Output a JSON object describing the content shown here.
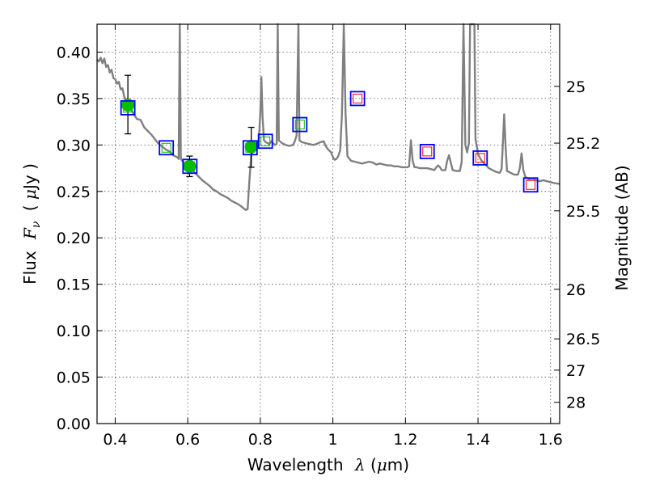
{
  "chart_data": {
    "type": "scatter",
    "xlabel": "Wavelength",
    "xlabel_symbol": "λ",
    "xlabel_unit_open": "(",
    "xlabel_unit_mu": "μ",
    "xlabel_unit_rest": "m)",
    "ylabel": "Flux",
    "ylabel_symbol": "F",
    "ylabel_symbol_sub": "ν",
    "ylabel_unit_open": "(",
    "ylabel_unit_mu": "μ",
    "ylabel_unit_rest": "Jy )",
    "y2label": "Magnitude (AB)",
    "xlim": [
      0.35,
      1.625
    ],
    "ylim": [
      0.0,
      0.43
    ],
    "grid": true,
    "x_ticks": [
      {
        "value": 0.4,
        "label": "0.4"
      },
      {
        "value": 0.6,
        "label": "0.6"
      },
      {
        "value": 0.8,
        "label": "0.8"
      },
      {
        "value": 1.0,
        "label": "1"
      },
      {
        "value": 1.2,
        "label": "1.2"
      },
      {
        "value": 1.4,
        "label": "1.4"
      },
      {
        "value": 1.6,
        "label": "1.6"
      }
    ],
    "y_ticks": [
      {
        "value": 0.0,
        "label": "0.00"
      },
      {
        "value": 0.05,
        "label": "0.05"
      },
      {
        "value": 0.1,
        "label": "0.10"
      },
      {
        "value": 0.15,
        "label": "0.15"
      },
      {
        "value": 0.2,
        "label": "0.20"
      },
      {
        "value": 0.25,
        "label": "0.25"
      },
      {
        "value": 0.3,
        "label": "0.30"
      },
      {
        "value": 0.35,
        "label": "0.35"
      },
      {
        "value": 0.4,
        "label": "0.40"
      }
    ],
    "y2_ticks": [
      {
        "mag": 25,
        "label": "25"
      },
      {
        "mag": 25.2,
        "label": "25.2"
      },
      {
        "mag": 25.5,
        "label": "25.5"
      },
      {
        "mag": 26,
        "label": "26"
      },
      {
        "mag": 26.5,
        "label": "26.5"
      },
      {
        "mag": 27,
        "label": "27"
      },
      {
        "mag": 28,
        "label": "28"
      }
    ],
    "colors": {
      "spectrum": "#808080",
      "observed": "#00bf00",
      "model_box": "#0000ff",
      "optical_model_inner": "#00bf00",
      "nir_model_inner": "#ff0000",
      "errorbar": "#000000",
      "grid": "#000000"
    },
    "spectrum": [
      [
        0.35,
        0.392
      ],
      [
        0.355,
        0.39
      ],
      [
        0.36,
        0.394
      ],
      [
        0.365,
        0.388
      ],
      [
        0.37,
        0.393
      ],
      [
        0.375,
        0.384
      ],
      [
        0.38,
        0.386
      ],
      [
        0.385,
        0.378
      ],
      [
        0.39,
        0.381
      ],
      [
        0.395,
        0.372
      ],
      [
        0.4,
        0.371
      ],
      [
        0.405,
        0.366
      ],
      [
        0.41,
        0.368
      ],
      [
        0.415,
        0.36
      ],
      [
        0.42,
        0.361
      ],
      [
        0.425,
        0.352
      ],
      [
        0.43,
        0.347
      ],
      [
        0.435,
        0.341
      ],
      [
        0.44,
        0.34
      ],
      [
        0.45,
        0.334
      ],
      [
        0.46,
        0.328
      ],
      [
        0.47,
        0.327
      ],
      [
        0.48,
        0.319
      ],
      [
        0.49,
        0.315
      ],
      [
        0.5,
        0.311
      ],
      [
        0.51,
        0.306
      ],
      [
        0.52,
        0.301
      ],
      [
        0.53,
        0.298
      ],
      [
        0.54,
        0.295
      ],
      [
        0.55,
        0.293
      ],
      [
        0.56,
        0.289
      ],
      [
        0.57,
        0.287
      ],
      [
        0.575,
        0.285
      ],
      [
        0.578,
        0.43
      ],
      [
        0.581,
        0.285
      ],
      [
        0.59,
        0.28
      ],
      [
        0.6,
        0.276
      ],
      [
        0.61,
        0.273
      ],
      [
        0.62,
        0.27
      ],
      [
        0.63,
        0.266
      ],
      [
        0.64,
        0.262
      ],
      [
        0.65,
        0.259
      ],
      [
        0.66,
        0.256
      ],
      [
        0.67,
        0.252
      ],
      [
        0.68,
        0.25
      ],
      [
        0.69,
        0.247
      ],
      [
        0.7,
        0.245
      ],
      [
        0.71,
        0.243
      ],
      [
        0.72,
        0.24
      ],
      [
        0.73,
        0.238
      ],
      [
        0.74,
        0.236
      ],
      [
        0.75,
        0.233
      ],
      [
        0.76,
        0.23
      ],
      [
        0.765,
        0.231
      ],
      [
        0.77,
        0.262
      ],
      [
        0.775,
        0.289
      ],
      [
        0.78,
        0.294
      ],
      [
        0.785,
        0.303
      ],
      [
        0.79,
        0.296
      ],
      [
        0.795,
        0.298
      ],
      [
        0.8,
        0.335
      ],
      [
        0.803,
        0.373
      ],
      [
        0.806,
        0.331
      ],
      [
        0.81,
        0.305
      ],
      [
        0.815,
        0.303
      ],
      [
        0.82,
        0.302
      ],
      [
        0.825,
        0.301
      ],
      [
        0.83,
        0.304
      ],
      [
        0.835,
        0.302
      ],
      [
        0.84,
        0.3
      ],
      [
        0.845,
        0.301
      ],
      [
        0.848,
        0.43
      ],
      [
        0.851,
        0.305
      ],
      [
        0.86,
        0.302
      ],
      [
        0.87,
        0.3
      ],
      [
        0.88,
        0.299
      ],
      [
        0.89,
        0.3
      ],
      [
        0.895,
        0.304
      ],
      [
        0.9,
        0.31
      ],
      [
        0.905,
        0.43
      ],
      [
        0.908,
        0.305
      ],
      [
        0.915,
        0.303
      ],
      [
        0.925,
        0.302
      ],
      [
        0.935,
        0.301
      ],
      [
        0.945,
        0.3
      ],
      [
        0.955,
        0.301
      ],
      [
        0.965,
        0.303
      ],
      [
        0.975,
        0.304
      ],
      [
        0.98,
        0.299
      ],
      [
        0.985,
        0.296
      ],
      [
        0.99,
        0.294
      ],
      [
        0.995,
        0.292
      ],
      [
        1.0,
        0.287
      ],
      [
        1.005,
        0.284
      ],
      [
        1.01,
        0.285
      ],
      [
        1.015,
        0.288
      ],
      [
        1.02,
        0.294
      ],
      [
        1.025,
        0.333
      ],
      [
        1.03,
        0.43
      ],
      [
        1.035,
        0.333
      ],
      [
        1.04,
        0.288
      ],
      [
        1.05,
        0.283
      ],
      [
        1.06,
        0.282
      ],
      [
        1.07,
        0.281
      ],
      [
        1.08,
        0.28
      ],
      [
        1.09,
        0.281
      ],
      [
        1.1,
        0.282
      ],
      [
        1.11,
        0.281
      ],
      [
        1.12,
        0.279
      ],
      [
        1.13,
        0.28
      ],
      [
        1.14,
        0.279
      ],
      [
        1.15,
        0.278
      ],
      [
        1.16,
        0.278
      ],
      [
        1.17,
        0.277
      ],
      [
        1.18,
        0.277
      ],
      [
        1.19,
        0.276
      ],
      [
        1.2,
        0.276
      ],
      [
        1.205,
        0.276
      ],
      [
        1.21,
        0.277
      ],
      [
        1.215,
        0.305
      ],
      [
        1.22,
        0.283
      ],
      [
        1.225,
        0.276
      ],
      [
        1.23,
        0.276
      ],
      [
        1.24,
        0.275
      ],
      [
        1.25,
        0.275
      ],
      [
        1.26,
        0.275
      ],
      [
        1.27,
        0.274
      ],
      [
        1.28,
        0.273
      ],
      [
        1.285,
        0.276
      ],
      [
        1.29,
        0.278
      ],
      [
        1.295,
        0.276
      ],
      [
        1.3,
        0.273
      ],
      [
        1.31,
        0.273
      ],
      [
        1.315,
        0.283
      ],
      [
        1.32,
        0.289
      ],
      [
        1.325,
        0.281
      ],
      [
        1.33,
        0.273
      ],
      [
        1.34,
        0.272
      ],
      [
        1.35,
        0.272
      ],
      [
        1.355,
        0.282
      ],
      [
        1.36,
        0.43
      ],
      [
        1.365,
        0.3
      ],
      [
        1.37,
        0.292
      ],
      [
        1.375,
        0.302
      ],
      [
        1.378,
        0.43
      ],
      [
        1.39,
        0.43
      ],
      [
        1.393,
        0.307
      ],
      [
        1.4,
        0.29
      ],
      [
        1.41,
        0.283
      ],
      [
        1.42,
        0.279
      ],
      [
        1.43,
        0.275
      ],
      [
        1.44,
        0.273
      ],
      [
        1.45,
        0.271
      ],
      [
        1.46,
        0.27
      ],
      [
        1.465,
        0.274
      ],
      [
        1.468,
        0.298
      ],
      [
        1.472,
        0.333
      ],
      [
        1.476,
        0.298
      ],
      [
        1.48,
        0.272
      ],
      [
        1.49,
        0.27
      ],
      [
        1.5,
        0.268
      ],
      [
        1.51,
        0.268
      ],
      [
        1.515,
        0.275
      ],
      [
        1.52,
        0.291
      ],
      [
        1.525,
        0.273
      ],
      [
        1.53,
        0.266
      ],
      [
        1.54,
        0.263
      ],
      [
        1.55,
        0.264
      ],
      [
        1.56,
        0.262
      ],
      [
        1.57,
        0.261
      ],
      [
        1.58,
        0.262
      ],
      [
        1.59,
        0.261
      ],
      [
        1.6,
        0.26
      ],
      [
        1.61,
        0.259
      ],
      [
        1.625,
        0.258
      ]
    ],
    "observed": [
      {
        "x": 0.435,
        "y": 0.343,
        "err_low": 0.031,
        "err_high": 0.032
      },
      {
        "x": 0.605,
        "y": 0.277,
        "err_low": 0.011,
        "err_high": 0.011
      },
      {
        "x": 0.775,
        "y": 0.298,
        "err_low": 0.022,
        "err_high": 0.021
      }
    ],
    "model_optical": [
      {
        "x": 0.435,
        "y": 0.34
      },
      {
        "x": 0.541,
        "y": 0.297
      },
      {
        "x": 0.606,
        "y": 0.277
      },
      {
        "x": 0.772,
        "y": 0.297
      },
      {
        "x": 0.814,
        "y": 0.304
      },
      {
        "x": 0.909,
        "y": 0.322
      }
    ],
    "model_nir": [
      {
        "x": 1.068,
        "y": 0.35
      },
      {
        "x": 1.26,
        "y": 0.293
      },
      {
        "x": 1.406,
        "y": 0.286
      },
      {
        "x": 1.545,
        "y": 0.257
      }
    ]
  }
}
